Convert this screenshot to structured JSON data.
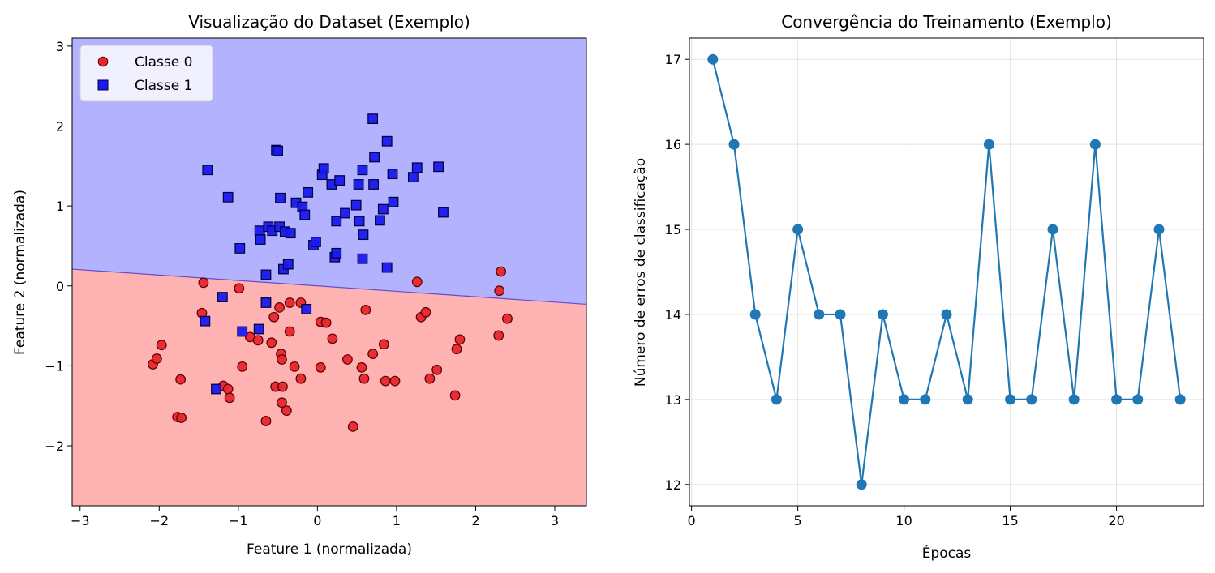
{
  "chart_data": [
    {
      "type": "scatter",
      "title": "Visualização do Dataset (Exemplo)",
      "xlabel": "Feature 1 (normalizada)",
      "ylabel": "Feature 2 (normalizada)",
      "xlim": [
        -3.1,
        3.4
      ],
      "ylim": [
        -2.75,
        3.1
      ],
      "xticks": [
        -3,
        -2,
        -1,
        0,
        1,
        2,
        3
      ],
      "yticks": [
        -2,
        -1,
        0,
        1,
        2,
        3
      ],
      "legend_position": "top-left",
      "decision_boundary": {
        "x": [
          -3.1,
          3.4
        ],
        "y": [
          0.21,
          -0.23
        ]
      },
      "region_colors": {
        "upper": "#b2b2ff",
        "lower": "#ffb2b2",
        "boundary": "#6a4cc8"
      },
      "series": [
        {
          "name": "Classe 0",
          "marker": "circle",
          "color": "#e8262b",
          "points": [
            [
              -2.08,
              -0.98
            ],
            [
              -2.03,
              -0.91
            ],
            [
              -1.97,
              -0.74
            ],
            [
              -1.73,
              -1.17
            ],
            [
              -1.77,
              -1.64
            ],
            [
              -1.72,
              -1.65
            ],
            [
              -1.44,
              0.04
            ],
            [
              -1.46,
              -0.34
            ],
            [
              -1.19,
              -1.25
            ],
            [
              -1.13,
              -1.29
            ],
            [
              -1.11,
              -1.4
            ],
            [
              -0.99,
              -0.03
            ],
            [
              -0.95,
              -1.01
            ],
            [
              -0.85,
              -0.64
            ],
            [
              -0.75,
              -0.68
            ],
            [
              -0.65,
              -1.69
            ],
            [
              -0.58,
              -0.71
            ],
            [
              -0.55,
              -0.39
            ],
            [
              -0.53,
              -1.26
            ],
            [
              -0.48,
              -0.27
            ],
            [
              -0.46,
              -0.85
            ],
            [
              -0.45,
              -0.92
            ],
            [
              -0.45,
              -1.46
            ],
            [
              -0.44,
              -1.26
            ],
            [
              -0.39,
              -1.56
            ],
            [
              -0.35,
              -0.21
            ],
            [
              -0.35,
              -0.57
            ],
            [
              -0.29,
              -1.01
            ],
            [
              -0.21,
              -0.21
            ],
            [
              -0.21,
              -1.16
            ],
            [
              0.04,
              -0.45
            ],
            [
              0.04,
              -1.02
            ],
            [
              0.11,
              -0.46
            ],
            [
              0.19,
              -0.66
            ],
            [
              0.38,
              -0.92
            ],
            [
              0.45,
              -1.76
            ],
            [
              0.56,
              -1.02
            ],
            [
              0.59,
              -1.16
            ],
            [
              0.61,
              -0.3
            ],
            [
              0.7,
              -0.85
            ],
            [
              0.84,
              -0.73
            ],
            [
              0.86,
              -1.19
            ],
            [
              0.98,
              -1.19
            ],
            [
              1.26,
              0.05
            ],
            [
              1.31,
              -0.39
            ],
            [
              1.37,
              -0.33
            ],
            [
              1.42,
              -1.16
            ],
            [
              1.51,
              -1.05
            ],
            [
              1.74,
              -1.37
            ],
            [
              1.76,
              -0.79
            ],
            [
              1.8,
              -0.67
            ],
            [
              2.29,
              -0.62
            ],
            [
              2.3,
              -0.06
            ],
            [
              2.32,
              0.18
            ],
            [
              2.4,
              -0.41
            ]
          ]
        },
        {
          "name": "Classe 1",
          "marker": "square",
          "color": "#1a1aef",
          "points": [
            [
              -1.39,
              1.45
            ],
            [
              -1.42,
              -0.44
            ],
            [
              -1.28,
              -1.29
            ],
            [
              -1.2,
              -0.14
            ],
            [
              -1.13,
              1.11
            ],
            [
              -0.98,
              0.47
            ],
            [
              -0.95,
              -0.57
            ],
            [
              -0.74,
              -0.54
            ],
            [
              -0.73,
              0.69
            ],
            [
              -0.72,
              0.58
            ],
            [
              -0.65,
              0.14
            ],
            [
              -0.65,
              -0.21
            ],
            [
              -0.62,
              0.74
            ],
            [
              -0.57,
              0.69
            ],
            [
              -0.52,
              1.7
            ],
            [
              -0.5,
              1.69
            ],
            [
              -0.48,
              0.74
            ],
            [
              -0.47,
              1.1
            ],
            [
              -0.43,
              0.21
            ],
            [
              -0.41,
              0.68
            ],
            [
              -0.37,
              0.27
            ],
            [
              -0.34,
              0.66
            ],
            [
              -0.27,
              1.04
            ],
            [
              -0.19,
              0.99
            ],
            [
              -0.16,
              0.89
            ],
            [
              -0.14,
              -0.29
            ],
            [
              -0.12,
              1.17
            ],
            [
              -0.05,
              0.51
            ],
            [
              -0.02,
              0.55
            ],
            [
              0.06,
              1.39
            ],
            [
              0.08,
              1.47
            ],
            [
              0.18,
              1.27
            ],
            [
              0.22,
              0.36
            ],
            [
              0.24,
              0.41
            ],
            [
              0.24,
              0.81
            ],
            [
              0.28,
              1.32
            ],
            [
              0.35,
              0.91
            ],
            [
              0.49,
              1.01
            ],
            [
              0.52,
              1.27
            ],
            [
              0.53,
              0.81
            ],
            [
              0.57,
              1.45
            ],
            [
              0.57,
              0.34
            ],
            [
              0.58,
              0.64
            ],
            [
              0.7,
              2.09
            ],
            [
              0.71,
              1.27
            ],
            [
              0.72,
              1.61
            ],
            [
              0.79,
              0.82
            ],
            [
              0.83,
              0.96
            ],
            [
              0.88,
              1.81
            ],
            [
              0.88,
              0.23
            ],
            [
              0.95,
              1.4
            ],
            [
              0.96,
              1.05
            ],
            [
              1.21,
              1.36
            ],
            [
              1.26,
              1.48
            ],
            [
              1.53,
              1.49
            ],
            [
              1.59,
              0.92
            ]
          ]
        }
      ]
    },
    {
      "type": "line",
      "title": "Convergência do Treinamento (Exemplo)",
      "xlabel": "Épocas",
      "ylabel": "Número de erros de classificação",
      "xlim": [
        -0.1,
        24.1
      ],
      "ylim": [
        11.75,
        17.25
      ],
      "xticks": [
        0,
        5,
        10,
        15,
        20
      ],
      "yticks": [
        12,
        13,
        14,
        15,
        16,
        17
      ],
      "grid": true,
      "color": "#1f77b4",
      "x": [
        1,
        2,
        3,
        4,
        5,
        6,
        7,
        8,
        9,
        10,
        11,
        12,
        13,
        14,
        15,
        16,
        17,
        18,
        19,
        20,
        21,
        22,
        23
      ],
      "y": [
        17,
        16,
        14,
        13,
        15,
        14,
        14,
        12,
        14,
        13,
        13,
        14,
        13,
        16,
        13,
        13,
        15,
        13,
        16,
        13,
        13,
        15,
        13
      ]
    }
  ]
}
